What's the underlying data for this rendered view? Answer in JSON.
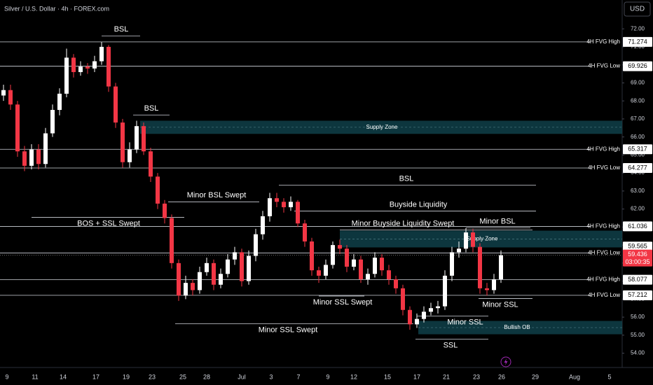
{
  "chart_data": {
    "type": "candlestick",
    "title": "Silver / U.S. Dollar · 4h · FOREX.com",
    "currency": "USD",
    "countdown": "03:00:35",
    "up_color": "#ffffff",
    "down_color": "#f23645",
    "x_labels": [
      "9",
      "11",
      "14",
      "17",
      "19",
      "23",
      "25",
      "28",
      "Jul",
      "3",
      "7",
      "9",
      "12",
      "15",
      "17",
      "21",
      "23",
      "26",
      "29",
      "Aug",
      "5"
    ],
    "open": [
      68.3,
      68.6,
      67.8,
      65.2,
      64.4,
      65.3,
      64.5,
      66.2,
      67.5,
      68.4,
      70.4,
      69.6,
      69.9,
      69.8,
      70.2,
      71.0,
      68.8,
      66.8,
      64.6,
      65.3,
      66.6,
      65.2,
      63.8,
      62.3,
      61.5,
      59.0,
      57.2,
      57.9,
      57.5,
      58.5,
      59.0,
      57.8,
      58.4,
      59.2,
      59.6,
      58.0,
      59.4,
      60.6,
      61.6,
      62.6,
      62.4,
      62.1,
      62.4,
      61.2,
      60.2,
      58.6,
      58.3,
      58.9,
      60.0,
      59.8,
      58.8,
      59.2,
      58.1,
      58.4,
      59.3,
      58.6,
      58.1,
      57.6,
      56.4,
      55.6,
      55.9,
      56.3,
      56.5,
      56.6,
      58.3,
      59.6,
      59.8,
      60.7,
      59.9,
      57.6,
      57.5,
      58.1
    ],
    "high": [
      68.9,
      68.9,
      68.0,
      65.5,
      65.6,
      65.6,
      66.5,
      67.8,
      68.7,
      70.9,
      70.6,
      70.2,
      70.1,
      70.5,
      71.27,
      71.1,
      69.0,
      67.0,
      65.7,
      66.9,
      66.8,
      65.4,
      64.0,
      62.5,
      61.7,
      59.2,
      58.3,
      58.1,
      58.8,
      59.3,
      59.2,
      58.7,
      59.5,
      59.9,
      59.8,
      59.7,
      60.9,
      61.9,
      62.9,
      62.9,
      62.6,
      62.7,
      62.5,
      61.4,
      60.4,
      58.8,
      59.2,
      60.2,
      60.3,
      60.0,
      59.5,
      59.4,
      58.7,
      59.6,
      59.5,
      58.9,
      58.3,
      57.8,
      56.6,
      56.2,
      56.6,
      56.8,
      56.9,
      58.6,
      59.9,
      60.2,
      60.95,
      60.9,
      60.1,
      57.9,
      58.4,
      59.7
    ],
    "low": [
      68.0,
      67.5,
      64.9,
      64.1,
      64.2,
      64.2,
      64.3,
      66.0,
      67.2,
      68.2,
      69.3,
      69.4,
      69.5,
      69.6,
      70.0,
      68.5,
      66.5,
      64.3,
      64.3,
      65.1,
      65.0,
      63.5,
      62.0,
      61.2,
      58.7,
      56.9,
      57.0,
      57.2,
      57.3,
      58.3,
      57.5,
      57.6,
      58.2,
      58.9,
      57.7,
      57.8,
      59.1,
      60.3,
      61.3,
      62.1,
      61.8,
      61.9,
      61.0,
      59.9,
      58.3,
      57.9,
      58.1,
      58.7,
      59.5,
      58.5,
      58.6,
      57.9,
      57.8,
      58.2,
      58.3,
      57.8,
      57.3,
      56.1,
      55.3,
      55.4,
      55.7,
      56.1,
      56.2,
      56.4,
      58.0,
      59.3,
      59.6,
      59.6,
      57.3,
      57.2,
      57.3,
      57.9
    ],
    "close": [
      68.6,
      67.8,
      65.2,
      64.4,
      65.3,
      64.5,
      66.2,
      67.5,
      68.4,
      70.4,
      69.6,
      69.9,
      69.8,
      70.2,
      71.0,
      68.8,
      66.8,
      64.6,
      65.3,
      66.6,
      65.2,
      63.8,
      62.3,
      61.5,
      59.0,
      57.2,
      57.9,
      57.5,
      58.5,
      59.0,
      57.8,
      58.4,
      59.2,
      59.6,
      58.0,
      59.4,
      60.6,
      61.6,
      62.6,
      62.4,
      62.1,
      62.4,
      61.2,
      60.2,
      58.6,
      58.3,
      58.9,
      60.0,
      59.8,
      58.8,
      59.2,
      58.1,
      58.4,
      59.3,
      58.6,
      58.1,
      57.6,
      56.4,
      55.6,
      55.9,
      56.3,
      56.5,
      56.6,
      58.3,
      59.6,
      59.8,
      60.7,
      59.9,
      57.6,
      57.5,
      58.1,
      59.436
    ],
    "ylim": [
      53.4,
      73.6
    ],
    "yticks": [
      {
        "value": 54,
        "label": "54.00"
      },
      {
        "value": 55,
        "label": "55.00"
      },
      {
        "value": 56,
        "label": "56.00"
      },
      {
        "value": 57,
        "label": "57.00"
      },
      {
        "value": 58,
        "label": "58.00"
      },
      {
        "value": 59,
        "label": "59.00"
      },
      {
        "value": 60,
        "label": "60.00"
      },
      {
        "value": 61,
        "label": "61.00"
      },
      {
        "value": 62,
        "label": "62.00"
      },
      {
        "value": 63,
        "label": "63.00"
      },
      {
        "value": 64,
        "label": "64.00"
      },
      {
        "value": 65,
        "label": "65.00"
      },
      {
        "value": 66,
        "label": "66.00"
      },
      {
        "value": 67,
        "label": "67.00"
      },
      {
        "value": 68,
        "label": "68.00"
      },
      {
        "value": 69,
        "label": "69.00"
      },
      {
        "value": 70,
        "label": "70.00"
      },
      {
        "value": 71,
        "label": "71.00"
      },
      {
        "value": 72,
        "label": "72.00"
      }
    ],
    "levels": [
      {
        "label": "4H FVG High",
        "value": 71.274
      },
      {
        "label": "4H FVG Low",
        "value": 69.926
      },
      {
        "label": "4H FVG High",
        "value": 65.317
      },
      {
        "label": "4H FVG Low",
        "value": 64.277
      },
      {
        "label": "4H FVG High",
        "value": 61.036
      },
      {
        "label": "4H FVG Low",
        "value": 59.565
      },
      {
        "label": "4H FVG High",
        "value": 58.077
      },
      {
        "label": "4H FVG Low",
        "value": 57.212
      }
    ],
    "annotations": [
      {
        "text": "BSL",
        "value": 71.61
      },
      {
        "text": "BSL",
        "value": 67.22
      },
      {
        "text": "Minor BSL Swept",
        "value": 62.4
      },
      {
        "text": "BOS + SSL Swept",
        "value": 61.54
      },
      {
        "text": "BSL",
        "value": 63.33
      },
      {
        "text": "Buyside Liquidity",
        "value": 61.89
      },
      {
        "text": "Minor Buyside Liquidity Swept",
        "value": 60.84
      },
      {
        "text": "Minor BSL",
        "value": 60.95
      },
      {
        "text": "Minor SSL Swept",
        "value": 57.17
      },
      {
        "text": "Minor SSL Swept",
        "value": 55.63
      },
      {
        "text": "Minor SSL",
        "value": 56.06
      },
      {
        "text": "SSL",
        "value": 54.78
      },
      {
        "text": "Minor SSL",
        "value": 57.03
      }
    ],
    "zones": [
      {
        "text": "Supply Zone",
        "range": [
          66.17,
          66.9
        ]
      },
      {
        "text": "Supply Zone",
        "range": [
          59.87,
          60.8
        ]
      },
      {
        "text": "Bullish OB",
        "range": [
          55.05,
          55.79
        ]
      }
    ]
  }
}
